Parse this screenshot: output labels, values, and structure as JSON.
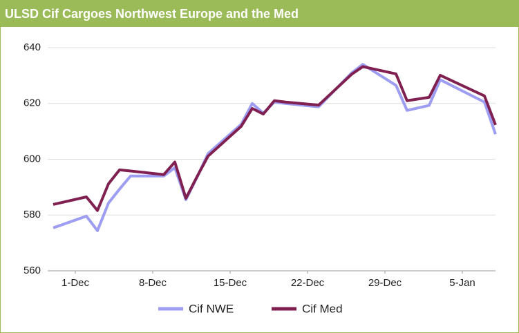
{
  "chart_data": {
    "type": "line",
    "title": "ULSD Cif Cargoes Northwest Europe and the Med",
    "x": [
      -1,
      2,
      3,
      4,
      5,
      6,
      9,
      10,
      11,
      12,
      13,
      16,
      17,
      18,
      19,
      20,
      23,
      26,
      27,
      30,
      31,
      33,
      34,
      38,
      39
    ],
    "series": [
      {
        "name": "Cif NWE",
        "color": "#9d9df2",
        "values": [
          575.4,
          579.6,
          574.4,
          584.3,
          589.3,
          594,
          594,
          597,
          585.5,
          593.5,
          602,
          612.5,
          620,
          616.5,
          620.5,
          620,
          618.8,
          631,
          634,
          626.5,
          617.5,
          619.3,
          628.5,
          620.5,
          609
        ]
      },
      {
        "name": "Cif Med",
        "color": "#802050",
        "values": [
          583.8,
          586.5,
          581.6,
          591.2,
          596.2,
          595.8,
          594.5,
          599,
          586,
          593.7,
          601.1,
          611.8,
          618.2,
          616.2,
          621,
          620.5,
          619.4,
          630.5,
          633.2,
          630.6,
          621,
          622.2,
          630.1,
          622.7,
          612.3
        ]
      }
    ],
    "xlim": [
      -1.5,
      39
    ],
    "xticks": [
      {
        "value": 1,
        "label": "1-Dec"
      },
      {
        "value": 8,
        "label": "8-Dec"
      },
      {
        "value": 15,
        "label": "15-Dec"
      },
      {
        "value": 22,
        "label": "22-Dec"
      },
      {
        "value": 29,
        "label": "29-Dec"
      },
      {
        "value": 36,
        "label": "5-Jan"
      }
    ],
    "ylim": [
      560,
      640
    ],
    "yticks": [
      560,
      580,
      600,
      620,
      640
    ],
    "grid": true
  }
}
